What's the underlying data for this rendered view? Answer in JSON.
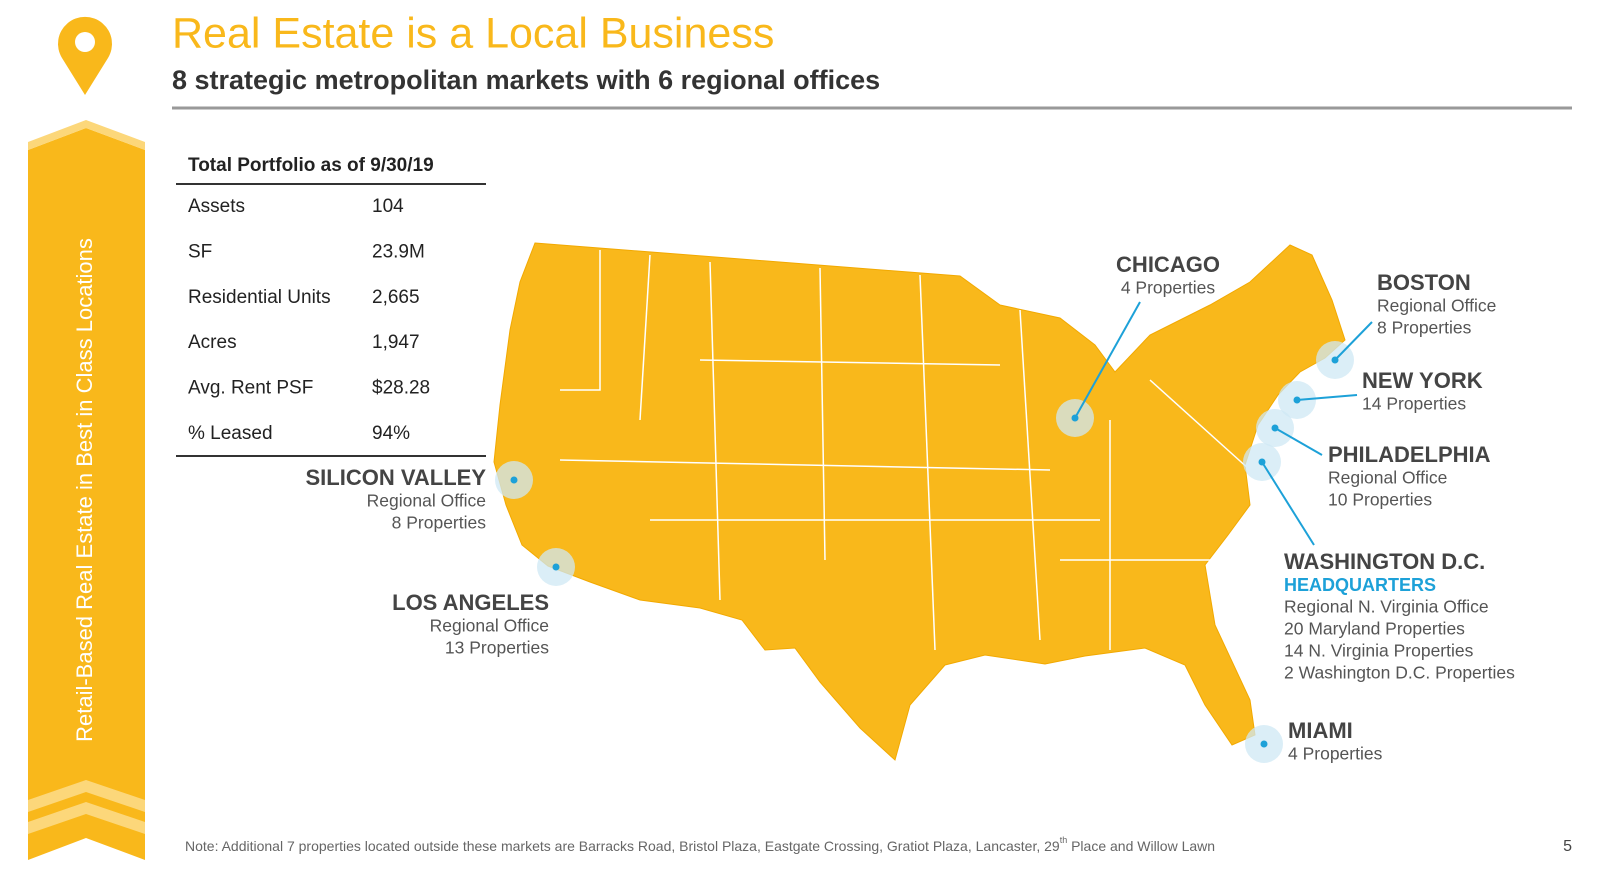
{
  "header": {
    "title": "Real Estate is a Local Business",
    "subtitle": "8 strategic metropolitan markets with 6 regional offices"
  },
  "sidebar": {
    "text": "Retail-Based Real Estate in Best in Class Locations"
  },
  "table": {
    "title": "Total Portfolio as of 9/30/19",
    "rows": [
      [
        "Assets",
        "104"
      ],
      [
        "SF",
        "23.9M"
      ],
      [
        "Residential Units",
        "2,665"
      ],
      [
        "Acres",
        "1,947"
      ],
      [
        "Avg. Rent PSF",
        "$28.28"
      ],
      [
        "% Leased",
        "94%"
      ]
    ]
  },
  "markets": [
    {
      "name": "CHICAGO",
      "lines": [
        "4 Properties"
      ]
    },
    {
      "name": "BOSTON",
      "lines": [
        "Regional Office",
        "8 Properties"
      ]
    },
    {
      "name": "NEW YORK",
      "lines": [
        "14 Properties"
      ]
    },
    {
      "name": "PHILADELPHIA",
      "lines": [
        "Regional Office",
        "10 Properties"
      ]
    },
    {
      "name": "WASHINGTON D.C.",
      "headquarters": "HEADQUARTERS",
      "lines": [
        "Regional N. Virginia Office",
        "20 Maryland Properties",
        "14 N. Virginia Properties",
        "2 Washington D.C. Properties"
      ]
    },
    {
      "name": "MIAMI",
      "lines": [
        "4 Properties"
      ]
    },
    {
      "name": "SILICON VALLEY",
      "lines": [
        "Regional Office",
        "8 Properties"
      ]
    },
    {
      "name": "LOS ANGELES",
      "lines": [
        "Regional Office",
        "13 Properties"
      ]
    }
  ],
  "note": {
    "before": "Note: Additional 7 properties located outside these markets are Barracks Road, Bristol Plaza, Eastgate Crossing, Gratiot Plaza, Lancaster, 29",
    "sup": "th",
    "after": " Place and Willow Lawn"
  },
  "page_number": "5"
}
